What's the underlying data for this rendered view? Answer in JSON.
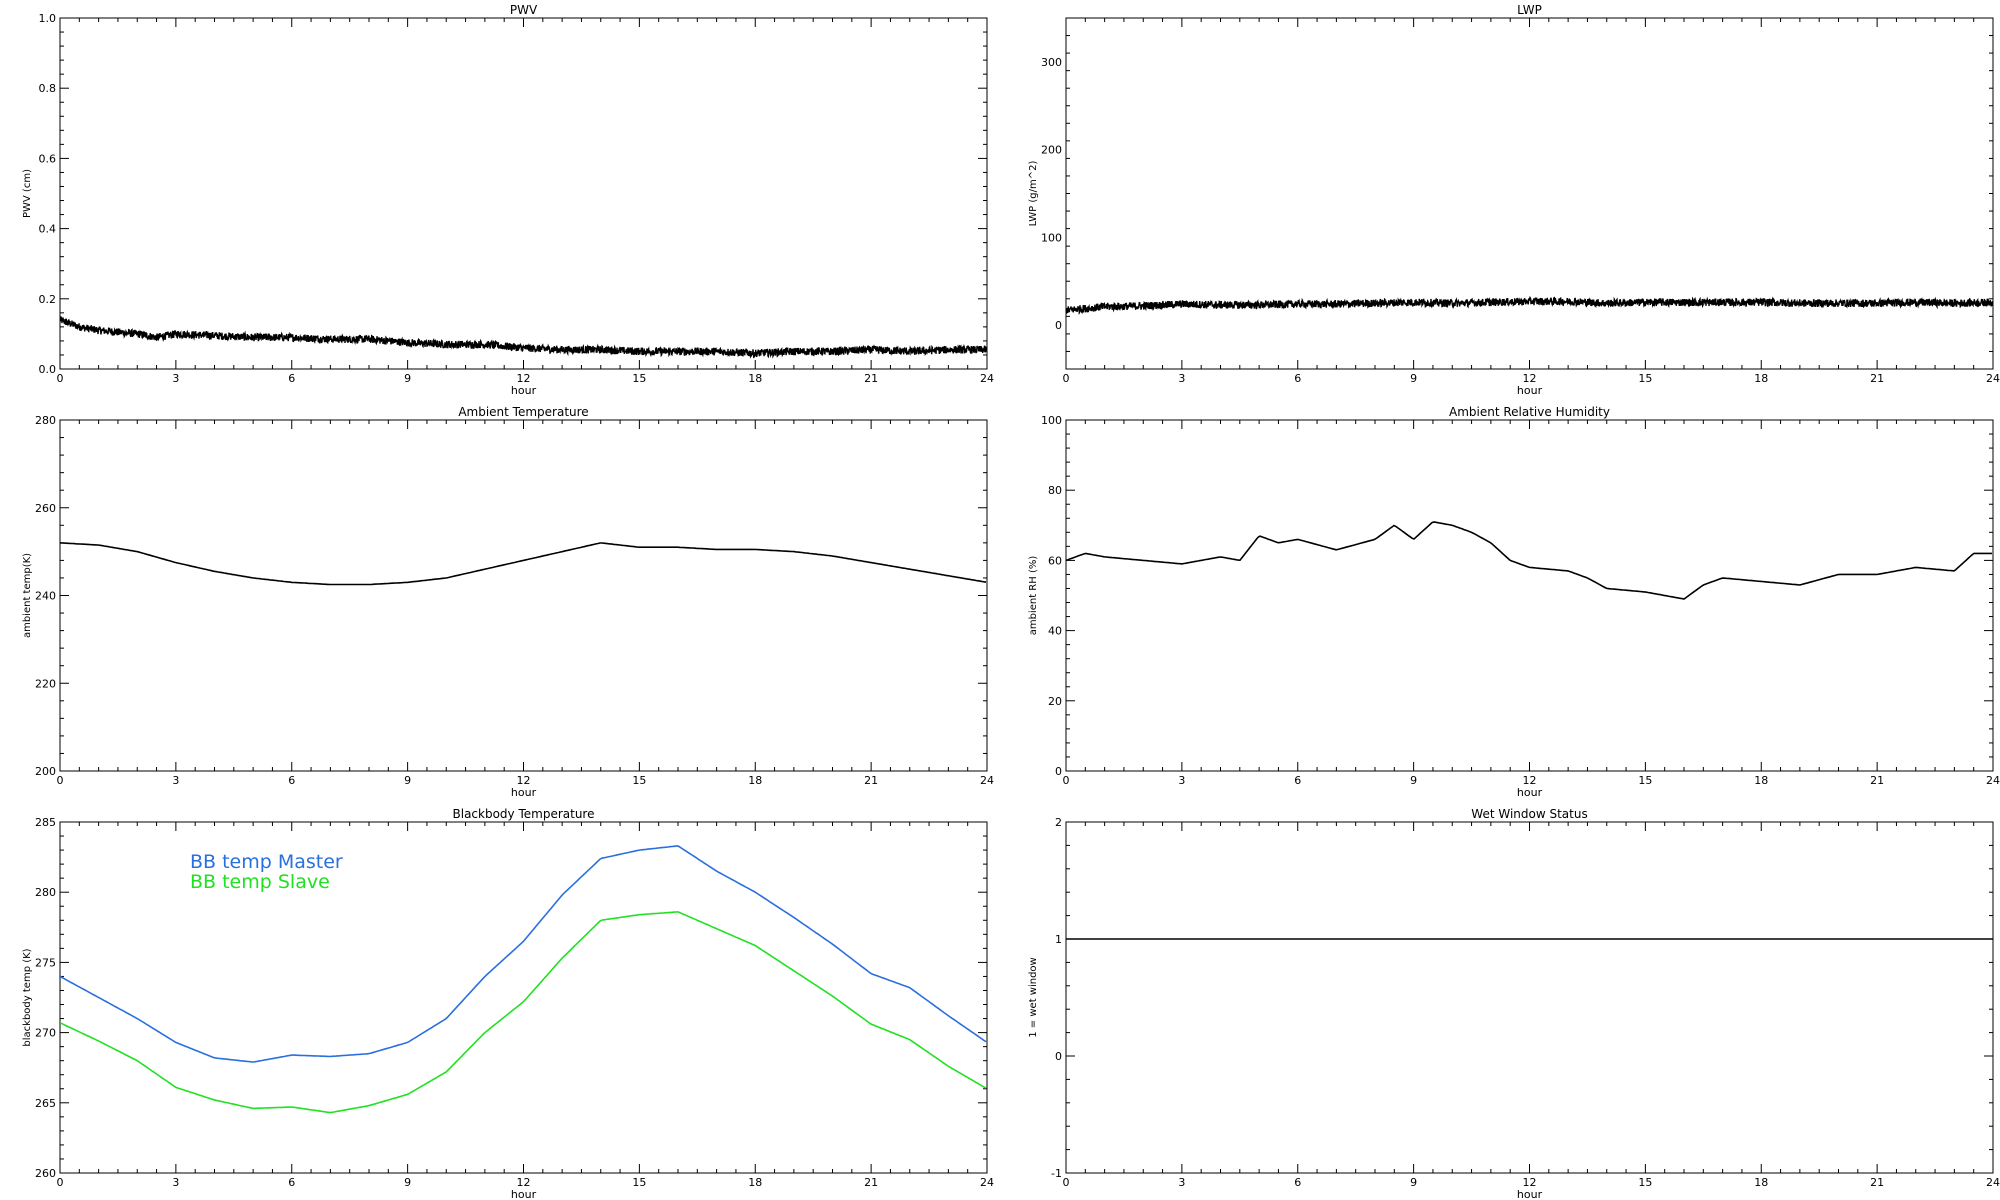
{
  "chart_data": [
    {
      "id": "pwv",
      "type": "line",
      "title": "PWV",
      "xlabel": "hour",
      "ylabel": "PWV (cm)",
      "xlim": [
        0,
        24
      ],
      "ylim": [
        0,
        1.0
      ],
      "xticks": [
        "0",
        "3",
        "6",
        "9",
        "12",
        "15",
        "18",
        "21",
        "24"
      ],
      "yticks": [
        "0.0",
        "0.2",
        "0.4",
        "0.6",
        "0.8",
        "1.0"
      ],
      "yticks_values": [
        0,
        0.2,
        0.4,
        0.6,
        0.8,
        1.0
      ],
      "noisy": true,
      "series": [
        {
          "color": "#000000",
          "x": [
            0,
            0.5,
            1,
            1.5,
            2,
            2.5,
            3,
            4,
            5,
            6,
            7,
            8,
            9,
            10,
            11,
            12,
            13,
            14,
            15,
            16,
            17,
            18,
            19,
            20,
            21,
            22,
            23,
            24
          ],
          "y": [
            0.14,
            0.12,
            0.11,
            0.105,
            0.1,
            0.09,
            0.1,
            0.095,
            0.09,
            0.09,
            0.085,
            0.085,
            0.075,
            0.07,
            0.07,
            0.06,
            0.055,
            0.055,
            0.05,
            0.05,
            0.05,
            0.045,
            0.05,
            0.05,
            0.055,
            0.05,
            0.055,
            0.055
          ]
        }
      ]
    },
    {
      "id": "lwp",
      "type": "line",
      "title": "LWP",
      "xlabel": "hour",
      "ylabel": "LWP (g/m^2)",
      "xlim": [
        0,
        24
      ],
      "ylim": [
        -50,
        350
      ],
      "xticks": [
        "0",
        "3",
        "6",
        "9",
        "12",
        "15",
        "18",
        "21",
        "24"
      ],
      "yticks": [
        "0",
        "100",
        "200",
        "300"
      ],
      "yticks_values": [
        0,
        100,
        200,
        300
      ],
      "noisy": true,
      "series": [
        {
          "color": "#000000",
          "x": [
            0,
            0.5,
            1,
            2,
            3,
            4,
            5,
            6,
            7,
            8,
            9,
            10,
            11,
            12,
            13,
            14,
            15,
            16,
            17,
            18,
            19,
            20,
            21,
            22,
            23,
            24
          ],
          "y": [
            17,
            19,
            21,
            22,
            24,
            23,
            23,
            24,
            24,
            25,
            26,
            25,
            26,
            27,
            27,
            25,
            26,
            26,
            26,
            26,
            25,
            25,
            25,
            26,
            25,
            26
          ]
        }
      ]
    },
    {
      "id": "ambient-temp",
      "type": "line",
      "title": "Ambient Temperature",
      "xlabel": "hour",
      "ylabel": "ambient temp(K)",
      "xlim": [
        0,
        24
      ],
      "ylim": [
        200,
        280
      ],
      "xticks": [
        "0",
        "3",
        "6",
        "9",
        "12",
        "15",
        "18",
        "21",
        "24"
      ],
      "yticks": [
        "200",
        "220",
        "240",
        "260",
        "280"
      ],
      "yticks_values": [
        200,
        220,
        240,
        260,
        280
      ],
      "noisy": false,
      "series": [
        {
          "color": "#000000",
          "x": [
            0,
            1,
            2,
            3,
            4,
            5,
            6,
            7,
            8,
            9,
            10,
            11,
            12,
            13,
            14,
            15,
            16,
            17,
            18,
            19,
            20,
            21,
            22,
            23,
            24
          ],
          "y": [
            252,
            251.5,
            250,
            247.5,
            245.5,
            244,
            243,
            242.5,
            242.5,
            243,
            244,
            246,
            248,
            250,
            252,
            251,
            251,
            250.5,
            250.5,
            250,
            249,
            247.5,
            246,
            244.5,
            243
          ]
        }
      ]
    },
    {
      "id": "ambient-rh",
      "type": "line",
      "title": "Ambient Relative Humidity",
      "xlabel": "hour",
      "ylabel": "ambient RH (%)",
      "xlim": [
        0,
        24
      ],
      "ylim": [
        0,
        100
      ],
      "xticks": [
        "0",
        "3",
        "6",
        "9",
        "12",
        "15",
        "18",
        "21",
        "24"
      ],
      "yticks": [
        "0",
        "20",
        "40",
        "60",
        "80",
        "100"
      ],
      "yticks_values": [
        0,
        20,
        40,
        60,
        80,
        100
      ],
      "noisy": false,
      "series": [
        {
          "color": "#000000",
          "x": [
            0,
            0.5,
            1,
            2,
            3,
            3.5,
            4,
            4.5,
            5,
            5.5,
            6,
            7,
            8,
            8.5,
            9,
            9.5,
            10,
            10.5,
            11,
            11.5,
            12,
            13,
            13.5,
            14,
            15,
            15.5,
            16,
            16.5,
            17,
            18,
            19,
            20,
            21,
            22,
            23,
            23.5,
            24
          ],
          "y": [
            60,
            62,
            61,
            60,
            59,
            60,
            61,
            60,
            67,
            65,
            66,
            63,
            66,
            70,
            66,
            71,
            70,
            68,
            65,
            60,
            58,
            57,
            55,
            52,
            51,
            50,
            49,
            53,
            55,
            54,
            53,
            56,
            56,
            58,
            57,
            62,
            62
          ]
        }
      ]
    },
    {
      "id": "bb-temp",
      "type": "line",
      "title": "Blackbody Temperature",
      "xlabel": "hour",
      "ylabel": "blackbody temp (K)",
      "xlim": [
        0,
        24
      ],
      "ylim": [
        260,
        285
      ],
      "xticks": [
        "0",
        "3",
        "6",
        "9",
        "12",
        "15",
        "18",
        "21",
        "24"
      ],
      "yticks": [
        "260",
        "265",
        "270",
        "275",
        "280",
        "285"
      ],
      "yticks_values": [
        260,
        265,
        270,
        275,
        280,
        285
      ],
      "noisy": false,
      "legend": [
        "BB temp Master",
        "BB temp Slave"
      ],
      "series": [
        {
          "name": "BB temp Master",
          "color": "#2a6fde",
          "x": [
            0,
            1,
            2,
            3,
            4,
            5,
            6,
            7,
            8,
            9,
            10,
            11,
            12,
            13,
            14,
            15,
            16,
            17,
            18,
            19,
            20,
            21,
            22,
            23,
            24
          ],
          "y": [
            274,
            272.5,
            271,
            269.3,
            268.2,
            267.9,
            268.4,
            268.3,
            268.5,
            269.3,
            271,
            274,
            276.5,
            279.8,
            282.4,
            283.0,
            283.3,
            281.5,
            280,
            278.2,
            276.3,
            274.2,
            273.2,
            271.2,
            269.3
          ]
        },
        {
          "name": "BB temp Slave",
          "color": "#22e022",
          "x": [
            0,
            1,
            2,
            3,
            4,
            5,
            6,
            7,
            8,
            9,
            10,
            11,
            12,
            13,
            14,
            15,
            16,
            17,
            18,
            19,
            20,
            21,
            22,
            23,
            24
          ],
          "y": [
            270.7,
            269.4,
            268,
            266.1,
            265.2,
            264.6,
            264.7,
            264.3,
            264.8,
            265.6,
            267.2,
            270,
            272.2,
            275.3,
            278,
            278.4,
            278.6,
            277.4,
            276.2,
            274.4,
            272.6,
            270.6,
            269.5,
            267.6,
            266
          ]
        }
      ]
    },
    {
      "id": "wet-window",
      "type": "line",
      "title": "Wet Window Status",
      "xlabel": "hour",
      "ylabel": "1 = wet window",
      "xlim": [
        0,
        24
      ],
      "ylim": [
        -1,
        2
      ],
      "xticks": [
        "0",
        "3",
        "6",
        "9",
        "12",
        "15",
        "18",
        "21",
        "24"
      ],
      "yticks": [
        "-1",
        "0",
        "1",
        "2"
      ],
      "yticks_values": [
        -1,
        0,
        1,
        2
      ],
      "noisy": false,
      "series": [
        {
          "color": "#000000",
          "x": [
            0,
            24
          ],
          "y": [
            1,
            1
          ]
        }
      ]
    }
  ]
}
